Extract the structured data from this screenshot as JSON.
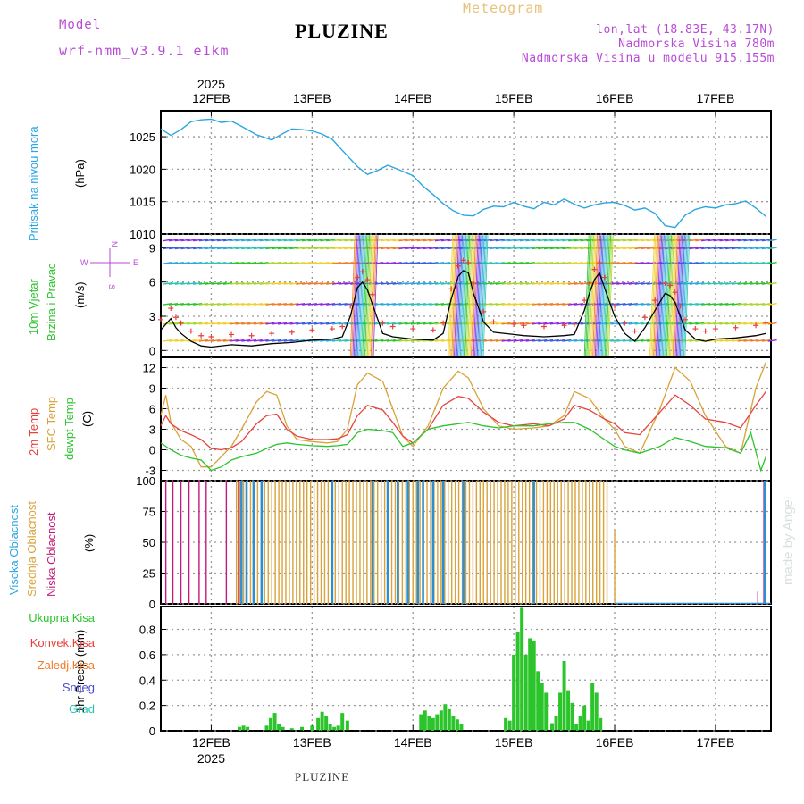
{
  "header": {
    "model_label": "Model",
    "model_name": "wrf-nmm_v3.9.1 e1km",
    "title": "PLUZINE",
    "meteogram_label": "Meteogram",
    "lonlat": "lon,lat (18.83E, 43.17N)",
    "elevation": "Nadmorska Visina 780m",
    "model_elevation": "Nadmorska Visina u modelu 915.155m",
    "footer_title": "PLUZINE",
    "watermark": "made by Angel",
    "year_top": "2025",
    "year_bottom": "2025"
  },
  "colors": {
    "pressure": "#2ba6e0",
    "temp2m": "#e8413c",
    "sfc": "#d9a23a",
    "dewpt": "#2bc42b",
    "high_cloud": "#2b8fd6",
    "mid_cloud": "#d9a23a",
    "low_cloud": "#c4197a",
    "precip_total": "#2bc42b",
    "convective": "#e8413c",
    "wind_gust": "#e8413c"
  },
  "chart_data": [
    {
      "type": "line",
      "panel": "pressure",
      "x_categories": [
        "12FEB",
        "13FEB",
        "14FEB",
        "15FEB",
        "16FEB",
        "17FEB"
      ],
      "ylabel_left": "Pritisak na nivou mora",
      "ylabel_unit": "(hPa)",
      "yticks": [
        "1025",
        "1020",
        "1015",
        "1010"
      ],
      "ylim": [
        1010,
        1029
      ],
      "x_range_days": [
        -0.5,
        5.55
      ],
      "grid": true,
      "series": [
        {
          "x": [
            -0.5,
            -0.4,
            -0.3,
            -0.2,
            -0.1,
            0,
            0.1,
            0.2,
            0.3,
            0.45,
            0.6,
            0.7,
            0.8,
            0.9,
            1.0,
            1.1,
            1.2,
            1.3,
            1.45,
            1.55,
            1.65,
            1.75,
            1.85,
            2.0,
            2.1,
            2.2,
            2.3,
            2.4,
            2.5,
            2.6,
            2.7,
            2.8,
            2.9,
            3.0,
            3.1,
            3.2,
            3.3,
            3.4,
            3.5,
            3.6,
            3.7,
            3.8,
            3.9,
            4.0,
            4.1,
            4.2,
            4.3,
            4.4,
            4.5,
            4.6,
            4.7,
            4.8,
            4.9,
            5.0,
            5.1,
            5.2,
            5.3,
            5.4,
            5.5
          ],
          "y": [
            1026.2,
            1025.2,
            1026.1,
            1027.3,
            1027.6,
            1027.7,
            1027.2,
            1027.4,
            1026.6,
            1025.3,
            1024.5,
            1025.4,
            1026.2,
            1026.1,
            1025.9,
            1025.4,
            1024.6,
            1022.9,
            1020.4,
            1019.2,
            1019.8,
            1020.6,
            1020.0,
            1019.0,
            1017.4,
            1016.1,
            1014.7,
            1013.6,
            1012.9,
            1012.8,
            1013.8,
            1014.3,
            1014.2,
            1014.9,
            1014.3,
            1013.9,
            1014.9,
            1014.5,
            1015.4,
            1014.6,
            1014.0,
            1014.5,
            1014.8,
            1014.9,
            1014.4,
            1013.7,
            1014.0,
            1013.2,
            1011.3,
            1011.0,
            1012.9,
            1013.8,
            1014.2,
            1014.0,
            1014.5,
            1014.7,
            1015.1,
            1014.0,
            1012.7
          ]
        }
      ]
    },
    {
      "type": "line",
      "panel": "wind",
      "ylabel_left_1": "10m Vjetar",
      "ylabel_left_2": "Brzina i Pravac",
      "ylabel_unit": "(m/s)",
      "compass_n": "N",
      "compass_s": "S",
      "compass_w": "W",
      "compass_e": "E",
      "yticks": [
        "9",
        "6",
        "3",
        "0"
      ],
      "ylim": [
        -0.6,
        10.2
      ],
      "grid": true,
      "series": [
        {
          "name": "wind speed",
          "x": [
            -0.5,
            -0.4,
            -0.35,
            -0.3,
            -0.2,
            -0.1,
            0.0,
            0.2,
            0.4,
            0.6,
            0.8,
            1.0,
            1.2,
            1.3,
            1.38,
            1.45,
            1.5,
            1.55,
            1.6,
            1.7,
            1.8,
            2.0,
            2.2,
            2.3,
            2.38,
            2.45,
            2.5,
            2.55,
            2.6,
            2.7,
            2.8,
            3.0,
            3.1,
            3.3,
            3.5,
            3.6,
            3.7,
            3.75,
            3.8,
            3.85,
            3.9,
            4.0,
            4.1,
            4.2,
            4.3,
            4.4,
            4.5,
            4.55,
            4.6,
            4.65,
            4.7,
            4.8,
            4.9,
            5.0,
            5.2,
            5.4,
            5.5
          ],
          "y": [
            1.8,
            2.8,
            2.0,
            1.5,
            0.8,
            0.4,
            0.3,
            0.5,
            0.4,
            0.6,
            0.7,
            0.9,
            1.0,
            1.2,
            3.0,
            5.5,
            6.0,
            5.3,
            4.0,
            1.5,
            1.2,
            1.0,
            0.9,
            1.5,
            4.5,
            6.5,
            7.0,
            6.8,
            5.0,
            2.5,
            1.6,
            1.4,
            1.3,
            1.2,
            1.3,
            1.4,
            3.5,
            5.0,
            6.2,
            6.8,
            5.5,
            3.0,
            1.5,
            0.8,
            2.0,
            3.5,
            5.0,
            4.8,
            4.2,
            3.0,
            1.8,
            1.0,
            0.8,
            1.0,
            1.1,
            1.3,
            1.5
          ]
        }
      ]
    },
    {
      "type": "line",
      "panel": "temperature",
      "ylabel_1": "2m Temp",
      "ylabel_2": "SFC Temp",
      "ylabel_3": "dewpt Temp",
      "ylabel_unit": "(C)",
      "yticks": [
        "12",
        "9",
        "6",
        "3",
        "0",
        "-3"
      ],
      "ylim": [
        -4.5,
        13.5
      ],
      "grid": true,
      "series": [
        {
          "name": "2m Temp",
          "x": [
            -0.5,
            -0.45,
            -0.4,
            -0.3,
            -0.2,
            -0.1,
            0,
            0.1,
            0.2,
            0.3,
            0.45,
            0.55,
            0.65,
            0.75,
            0.85,
            1.0,
            1.15,
            1.25,
            1.35,
            1.45,
            1.55,
            1.7,
            1.8,
            1.9,
            2.0,
            2.15,
            2.3,
            2.45,
            2.55,
            2.7,
            2.85,
            3.0,
            3.2,
            3.35,
            3.5,
            3.6,
            3.75,
            3.9,
            4.0,
            4.1,
            4.25,
            4.45,
            4.6,
            4.75,
            4.9,
            5.1,
            5.25,
            5.4,
            5.5
          ],
          "y": [
            3.5,
            5.0,
            3.8,
            2.8,
            2.2,
            1.5,
            0.2,
            0.0,
            0.3,
            1.2,
            3.8,
            5.0,
            5.2,
            3.0,
            2.0,
            1.5,
            1.5,
            1.6,
            2.2,
            5.0,
            6.5,
            5.8,
            4.0,
            2.0,
            1.0,
            3.0,
            6.5,
            7.8,
            7.5,
            5.5,
            4.0,
            3.5,
            3.8,
            3.5,
            4.5,
            6.5,
            5.8,
            4.5,
            3.8,
            2.5,
            2.2,
            5.5,
            8.0,
            6.5,
            4.5,
            4.0,
            3.2,
            6.5,
            8.5
          ]
        },
        {
          "name": "SFC Temp",
          "x": [
            -0.5,
            -0.45,
            -0.4,
            -0.3,
            -0.2,
            -0.1,
            0,
            0.1,
            0.2,
            0.3,
            0.45,
            0.55,
            0.65,
            0.75,
            0.85,
            1.0,
            1.15,
            1.25,
            1.35,
            1.45,
            1.55,
            1.7,
            1.8,
            1.9,
            2.0,
            2.15,
            2.3,
            2.45,
            2.55,
            2.7,
            2.85,
            3.0,
            3.2,
            3.35,
            3.5,
            3.6,
            3.75,
            3.9,
            4.0,
            4.1,
            4.25,
            4.45,
            4.6,
            4.75,
            4.9,
            5.1,
            5.25,
            5.4,
            5.5
          ],
          "y": [
            5.0,
            8.0,
            4.0,
            1.5,
            0.5,
            -2.5,
            -2.5,
            -1.0,
            0.5,
            3.0,
            7.0,
            8.5,
            8.0,
            3.5,
            1.5,
            1.2,
            1.0,
            1.2,
            3.0,
            9.5,
            11.2,
            10.0,
            6.0,
            2.0,
            0.5,
            3.5,
            9.0,
            11.5,
            10.5,
            6.0,
            3.5,
            3.0,
            3.2,
            3.5,
            5.0,
            8.5,
            7.5,
            4.5,
            3.0,
            0.5,
            -0.5,
            6.0,
            12.0,
            10.0,
            5.0,
            0.5,
            -0.5,
            9.0,
            12.8
          ]
        },
        {
          "name": "dewpt Temp",
          "x": [
            -0.5,
            -0.4,
            -0.3,
            -0.2,
            -0.1,
            0,
            0.1,
            0.2,
            0.3,
            0.45,
            0.55,
            0.65,
            0.75,
            0.85,
            1.0,
            1.15,
            1.25,
            1.35,
            1.45,
            1.55,
            1.7,
            1.8,
            1.9,
            2.0,
            2.15,
            2.3,
            2.45,
            2.55,
            2.7,
            2.85,
            3.0,
            3.2,
            3.35,
            3.5,
            3.6,
            3.75,
            3.9,
            4.0,
            4.1,
            4.25,
            4.45,
            4.6,
            4.75,
            4.9,
            5.1,
            5.25,
            5.35,
            5.45,
            5.5
          ],
          "y": [
            1.0,
            0.0,
            -0.8,
            -1.2,
            -1.5,
            -3.0,
            -2.5,
            -1.5,
            -1.0,
            -0.5,
            0.2,
            0.8,
            1.0,
            0.8,
            0.6,
            0.5,
            0.6,
            0.8,
            2.5,
            3.0,
            2.8,
            2.5,
            0.5,
            1.0,
            3.0,
            3.5,
            3.8,
            4.0,
            3.5,
            3.2,
            3.5,
            3.5,
            3.8,
            4.0,
            4.0,
            3.0,
            1.5,
            0.5,
            0.0,
            -0.5,
            0.5,
            1.8,
            1.2,
            0.5,
            0.3,
            -0.5,
            2.5,
            -3.0,
            -1.0
          ]
        }
      ]
    },
    {
      "type": "bar",
      "panel": "cloud",
      "ylabel_1": "Visoka Oblacnost",
      "ylabel_2": "Srednja Oblacnost",
      "ylabel_3": "Niska Oblacnost",
      "ylabel_unit": "(%)",
      "yticks": [
        "100",
        "75",
        "50",
        "25",
        "0"
      ],
      "ylim": [
        0,
        100
      ],
      "grid": true,
      "series": [
        {
          "name": "Niska Oblacnost",
          "x": [
            -0.45,
            -0.38,
            -0.3,
            -0.22,
            -0.12,
            -0.05,
            0.15,
            0.27,
            5.42,
            5.48
          ],
          "values": [
            100,
            100,
            100,
            100,
            100,
            100,
            100,
            100,
            10,
            100
          ]
        },
        {
          "name": "Srednja Oblacnost",
          "x_range": [
            0.25,
            3.95
          ],
          "value": 100,
          "end_x": 4.0,
          "end_value": 60
        },
        {
          "name": "Visoka Oblacnost",
          "x": [
            0.3,
            0.35,
            0.42,
            0.5,
            1.2,
            1.6,
            1.75,
            1.85,
            1.95,
            2.05,
            2.1,
            2.2,
            2.3,
            2.5,
            3.2,
            5.49
          ],
          "values": [
            100,
            100,
            100,
            100,
            100,
            100,
            100,
            100,
            100,
            100,
            100,
            100,
            100,
            100,
            100,
            100
          ]
        }
      ]
    },
    {
      "type": "bar",
      "panel": "precip",
      "legend_1": "Ukupna Kisa",
      "legend_2": "Konvek.Kisa",
      "legend_3": "Zaledj.Kisa",
      "legend_4": "Snijeg",
      "legend_5": "Grad",
      "ylabel": "1hr Precip (mm)",
      "yticks": [
        "0.8",
        "0.6",
        "0.4",
        "0.2",
        "0"
      ],
      "ylim": [
        0,
        0.98
      ],
      "grid": true,
      "x_categories": [
        "12FEB",
        "13FEB",
        "14FEB",
        "15FEB",
        "16FEB",
        "17FEB"
      ],
      "series": [
        {
          "name": "Ukupna Kisa",
          "x": [
            0.28,
            0.32,
            0.36,
            0.55,
            0.59,
            0.63,
            0.67,
            0.71,
            0.8,
            0.9,
            1.0,
            1.06,
            1.1,
            1.14,
            1.18,
            1.22,
            1.26,
            1.3,
            1.35,
            2.08,
            2.12,
            2.16,
            2.2,
            2.24,
            2.28,
            2.32,
            2.36,
            2.4,
            2.44,
            2.48,
            2.92,
            2.96,
            3.0,
            3.04,
            3.08,
            3.12,
            3.16,
            3.2,
            3.24,
            3.28,
            3.32,
            3.38,
            3.42,
            3.46,
            3.5,
            3.54,
            3.58,
            3.62,
            3.66,
            3.7,
            3.74,
            3.78,
            3.82,
            3.86
          ],
          "y": [
            0.03,
            0.04,
            0.03,
            0.04,
            0.1,
            0.14,
            0.05,
            0.03,
            0.02,
            0.03,
            0.04,
            0.1,
            0.15,
            0.12,
            0.05,
            0.03,
            0.04,
            0.14,
            0.08,
            0.13,
            0.16,
            0.12,
            0.1,
            0.13,
            0.16,
            0.21,
            0.17,
            0.12,
            0.09,
            0.05,
            0.1,
            0.08,
            0.6,
            0.78,
            0.97,
            0.6,
            0.73,
            0.71,
            0.47,
            0.38,
            0.3,
            0.06,
            0.12,
            0.3,
            0.55,
            0.32,
            0.22,
            0.05,
            0.12,
            0.2,
            0.08,
            0.38,
            0.3,
            0.1
          ]
        }
      ]
    }
  ]
}
